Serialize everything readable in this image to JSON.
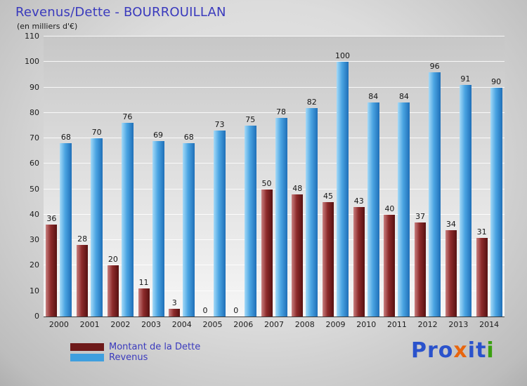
{
  "title": "Revenus/Dette - BOURROUILLAN",
  "subtitle": "(en milliers d'€)",
  "colors": {
    "title_text": "#3a3abd",
    "dette_bar": "#6e1a1a",
    "revenus_bar": "#3f9fdf",
    "plot_grid": "#ffffff"
  },
  "chart_data": {
    "type": "bar",
    "title": "Revenus/Dette - BOURROUILLAN",
    "subtitle": "(en milliers d'€)",
    "categories": [
      "2000",
      "2001",
      "2002",
      "2003",
      "2004",
      "2005",
      "2006",
      "2007",
      "2008",
      "2009",
      "2010",
      "2011",
      "2012",
      "2013",
      "2014"
    ],
    "series": [
      {
        "name": "Montant de la Dette",
        "color": "#6e1a1a",
        "values": [
          36,
          28,
          20,
          11,
          3,
          0,
          0,
          50,
          48,
          45,
          43,
          40,
          37,
          34,
          31
        ]
      },
      {
        "name": "Revenus",
        "color": "#3f9fdf",
        "values": [
          68,
          70,
          76,
          69,
          68,
          73,
          75,
          78,
          82,
          100,
          84,
          84,
          96,
          91,
          90
        ]
      }
    ],
    "xlabel": "",
    "ylabel": "",
    "ylim": [
      0,
      110
    ],
    "yticks": [
      0,
      10,
      20,
      30,
      40,
      50,
      60,
      70,
      80,
      90,
      100,
      110
    ],
    "grid": true,
    "legend_position": "bottom-left",
    "value_labels": true
  },
  "logo": {
    "name": "Proxiti",
    "letters": [
      {
        "ch": "P",
        "color": "#2a52cc"
      },
      {
        "ch": "r",
        "color": "#2a52cc"
      },
      {
        "ch": "o",
        "color": "#2a52cc"
      },
      {
        "ch": "x",
        "color": "#e8650d"
      },
      {
        "ch": "i",
        "color": "#2a52cc"
      },
      {
        "ch": "t",
        "color": "#2a52cc"
      },
      {
        "ch": "i",
        "color": "#3aa010"
      }
    ]
  }
}
